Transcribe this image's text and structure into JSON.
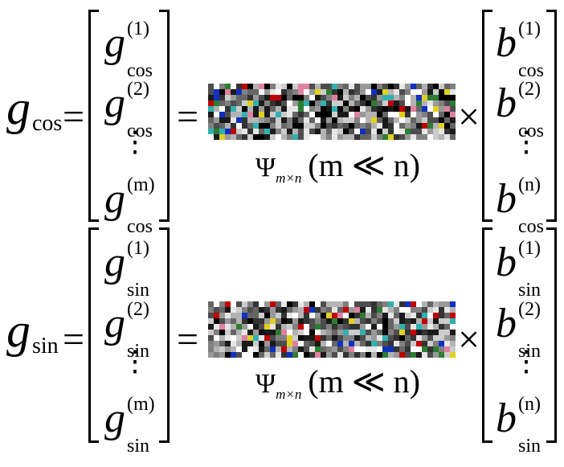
{
  "equations": [
    {
      "lhs_symbol": "g",
      "lhs_subscript": "cos",
      "equals": "=",
      "times": "×",
      "left_vector": [
        {
          "base": "g",
          "sub": "cos",
          "sup": "(1)"
        },
        {
          "base": "g",
          "sub": "cos",
          "sup": "(2)"
        },
        {
          "base": "⋮"
        },
        {
          "base": "g",
          "sub": "cos",
          "sup": "(m)"
        }
      ],
      "right_vector": [
        {
          "base": "b",
          "sub": "cos",
          "sup": "(1)"
        },
        {
          "base": "b",
          "sub": "cos",
          "sup": "(2)"
        },
        {
          "base": "⋮"
        },
        {
          "base": "b",
          "sub": "cos",
          "sup": "(n)"
        }
      ],
      "matrix_label": {
        "symbol": "Ψ",
        "subscript": "m×n",
        "condition": "(m ≪ n)"
      }
    },
    {
      "lhs_symbol": "g",
      "lhs_subscript": "sin",
      "equals": "=",
      "times": "×",
      "left_vector": [
        {
          "base": "g",
          "sub": "sin",
          "sup": "(1)"
        },
        {
          "base": "g",
          "sub": "sin",
          "sup": "(2)"
        },
        {
          "base": "⋮"
        },
        {
          "base": "g",
          "sub": "sin",
          "sup": "(m)"
        }
      ],
      "right_vector": [
        {
          "base": "b",
          "sub": "sin",
          "sup": "(1)"
        },
        {
          "base": "b",
          "sub": "sin",
          "sup": "(2)"
        },
        {
          "base": "⋮"
        },
        {
          "base": "b",
          "sub": "sin",
          "sup": "(n)"
        }
      ],
      "matrix_label": {
        "symbol": "Ψ",
        "subscript": "m×n",
        "condition": "(m ≪ n)"
      }
    }
  ],
  "matrix_palette": [
    "#000000",
    "#1a1a1a",
    "#333333",
    "#4d4d4d",
    "#666666",
    "#808080",
    "#999999",
    "#b3b3b3",
    "#cccccc",
    "#e6e6e6",
    "#ffffff",
    "#c00000",
    "#1030c0",
    "#e0d020",
    "#30b0b0",
    "#e080a0",
    "#2e7d32"
  ]
}
